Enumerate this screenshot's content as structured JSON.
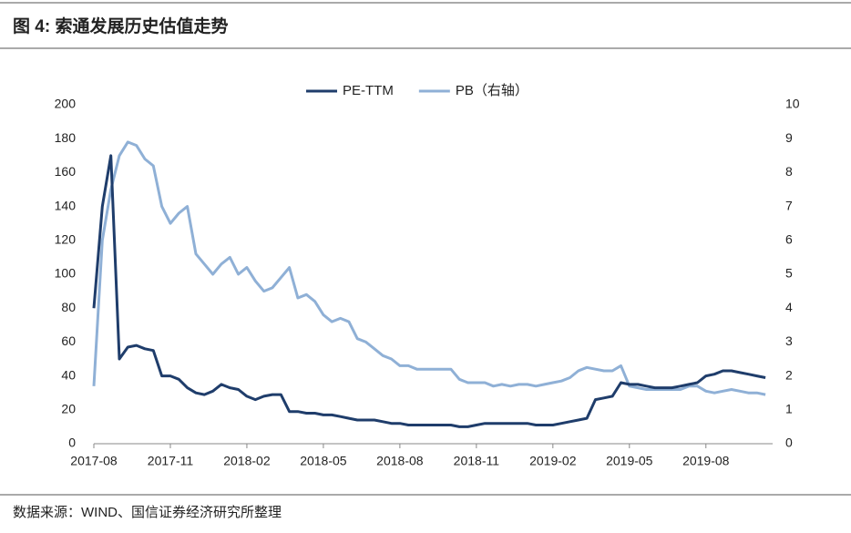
{
  "header": {
    "title": "图 4:  索通发展历史估值走势"
  },
  "chart_data": {
    "type": "line",
    "categories": [
      "2017-08",
      null,
      null,
      null,
      null,
      null,
      null,
      null,
      null,
      "2017-11",
      null,
      null,
      null,
      null,
      null,
      null,
      null,
      null,
      "2018-02",
      null,
      null,
      null,
      null,
      null,
      null,
      null,
      null,
      "2018-05",
      null,
      null,
      null,
      null,
      null,
      null,
      null,
      null,
      "2018-08",
      null,
      null,
      null,
      null,
      null,
      null,
      null,
      null,
      "2018-11",
      null,
      null,
      null,
      null,
      null,
      null,
      null,
      null,
      "2019-02",
      null,
      null,
      null,
      null,
      null,
      null,
      null,
      null,
      "2019-05",
      null,
      null,
      null,
      null,
      null,
      null,
      null,
      null,
      "2019-08",
      null,
      null,
      null,
      null,
      null,
      null,
      null
    ],
    "series": [
      {
        "name": "PE-TTM",
        "color": "#1f3d6b",
        "values": [
          80,
          140,
          170,
          50,
          57,
          58,
          56,
          55,
          40,
          40,
          38,
          33,
          30,
          29,
          31,
          35,
          33,
          32,
          28,
          26,
          28,
          29,
          29,
          19,
          19,
          18,
          18,
          17,
          17,
          16,
          15,
          14,
          14,
          14,
          13,
          12,
          12,
          11,
          11,
          11,
          11,
          11,
          11,
          10,
          10,
          11,
          12,
          12,
          12,
          12,
          12,
          12,
          11,
          11,
          11,
          12,
          13,
          14,
          15,
          26,
          27,
          28,
          36,
          35,
          35,
          34,
          33,
          33,
          33,
          34,
          35,
          36,
          40,
          41,
          43,
          43,
          42,
          41,
          40,
          39
        ]
      },
      {
        "name": "PB（右轴）",
        "color": "#8fb0d6",
        "axis": "y2",
        "values": [
          1.7,
          6.0,
          7.5,
          8.5,
          8.9,
          8.8,
          8.4,
          8.2,
          7.0,
          6.5,
          6.8,
          7.0,
          5.6,
          5.3,
          5.0,
          5.3,
          5.5,
          5.0,
          5.2,
          4.8,
          4.5,
          4.6,
          4.9,
          5.2,
          4.3,
          4.4,
          4.2,
          3.8,
          3.6,
          3.7,
          3.6,
          3.1,
          3.0,
          2.8,
          2.6,
          2.5,
          2.3,
          2.3,
          2.2,
          2.2,
          2.2,
          2.2,
          2.2,
          1.9,
          1.8,
          1.8,
          1.8,
          1.7,
          1.75,
          1.7,
          1.75,
          1.75,
          1.7,
          1.75,
          1.8,
          1.85,
          1.95,
          2.15,
          2.25,
          2.2,
          2.15,
          2.15,
          2.3,
          1.7,
          1.65,
          1.6,
          1.6,
          1.6,
          1.6,
          1.6,
          1.7,
          1.7,
          1.55,
          1.5,
          1.55,
          1.6,
          1.55,
          1.5,
          1.5,
          1.45
        ]
      }
    ],
    "ylim": [
      0,
      200
    ],
    "yticks": [
      0,
      20,
      40,
      60,
      80,
      100,
      120,
      140,
      160,
      180,
      200
    ],
    "y2lim": [
      0,
      10
    ],
    "y2ticks": [
      0,
      1,
      2,
      3,
      4,
      5,
      6,
      7,
      8,
      9,
      10
    ],
    "legend": "top"
  },
  "footer": {
    "source": "数据来源：WIND、国信证券经济研究所整理"
  }
}
